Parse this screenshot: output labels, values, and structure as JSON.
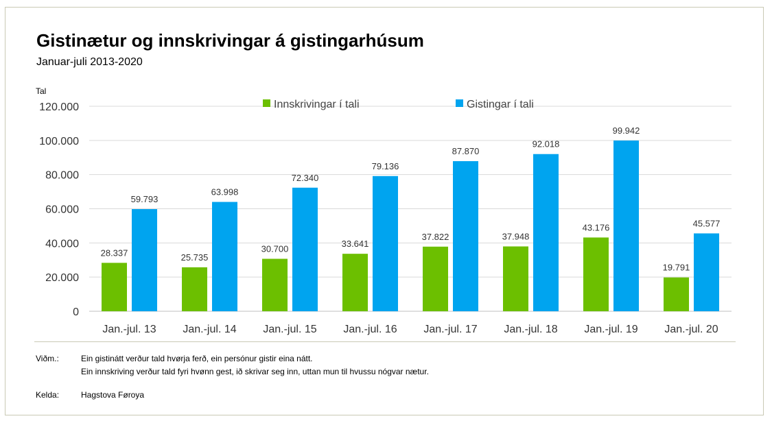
{
  "header": {
    "title": "Gistinætur og innskrivingar á gistingarhúsum",
    "subtitle": "Januar-juli 2013-2020"
  },
  "chart_data": {
    "type": "bar",
    "title": "Gistinætur og innskrivingar á gistingarhúsum",
    "subtitle": "Januar-juli 2013-2020",
    "ylabel": "Tal",
    "xlabel": "",
    "ylim": [
      0,
      120000
    ],
    "yticks": [
      0,
      20000,
      40000,
      60000,
      80000,
      100000,
      120000
    ],
    "ytick_labels": [
      "0",
      "20.000",
      "40.000",
      "60.000",
      "80.000",
      "100.000",
      "120.000"
    ],
    "grid": true,
    "legend_position": "top-center",
    "categories": [
      "Jan.-jul. 13",
      "Jan.-jul. 14",
      "Jan.-jul. 15",
      "Jan.-jul. 16",
      "Jan.-jul. 17",
      "Jan.-jul. 18",
      "Jan.-jul. 19",
      "Jan.-jul. 20"
    ],
    "series": [
      {
        "name": "Innskrivingar í tali",
        "color": "#6cbf00",
        "values": [
          28337,
          25735,
          30700,
          33641,
          37822,
          37948,
          43176,
          19791
        ],
        "labels": [
          "28.337",
          "25.735",
          "30.700",
          "33.641",
          "37.822",
          "37.948",
          "43.176",
          "19.791"
        ]
      },
      {
        "name": "Gistingar í tali",
        "color": "#00a4ef",
        "values": [
          59793,
          63998,
          72340,
          79136,
          87870,
          92018,
          99942,
          45577
        ],
        "labels": [
          "59.793",
          "63.998",
          "72.340",
          "79.136",
          "87.870",
          "92.018",
          "99.942",
          "45.577"
        ]
      }
    ]
  },
  "notes": {
    "label": "Viðm.:",
    "line1": "Ein gistinátt verður tald hvørja ferð, ein persónur gistir eina nátt.",
    "line2": "Ein innskriving verður tald fyri hvønn gest, ið skrivar seg inn, uttan mun til hvussu nógvar nætur.",
    "source_label": "Kelda:",
    "source": "Hagstova Føroya"
  }
}
